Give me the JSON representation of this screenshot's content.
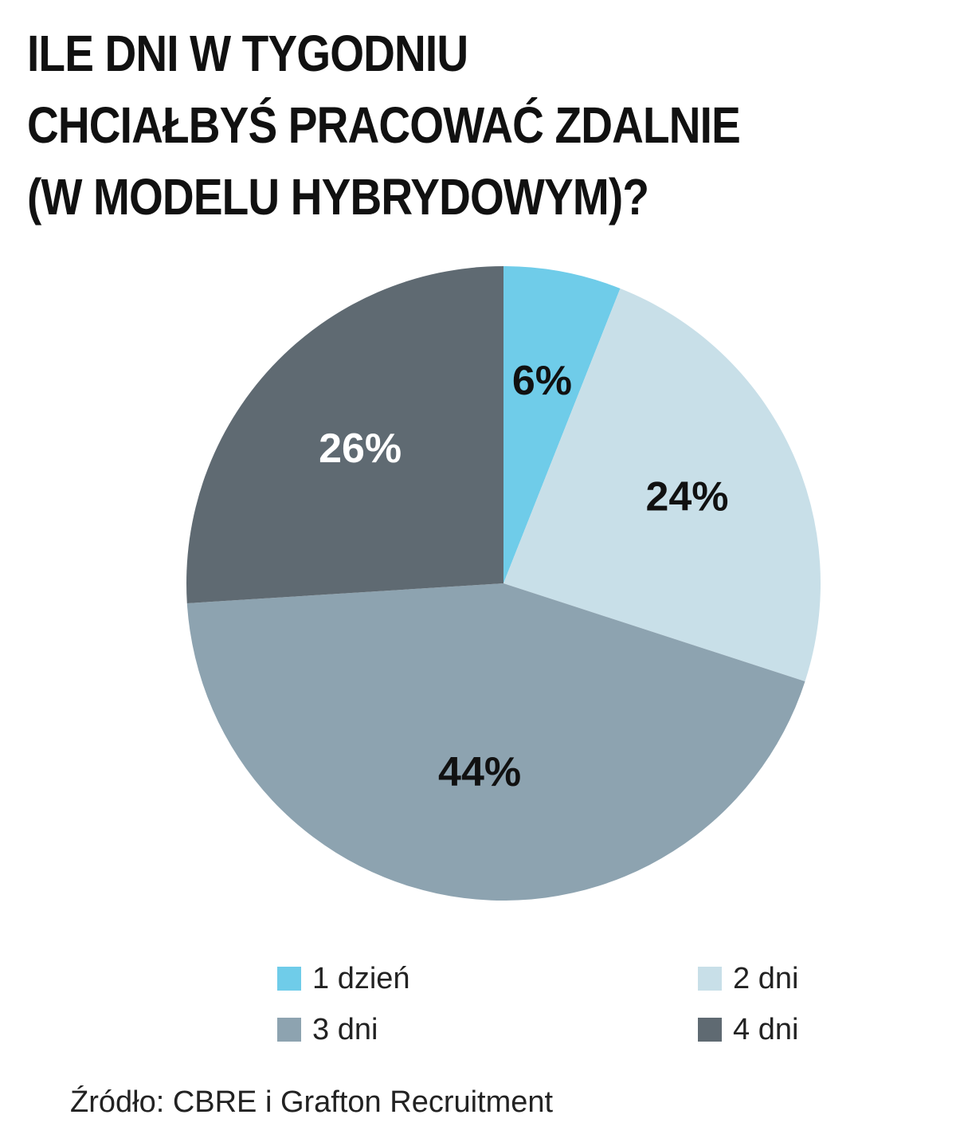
{
  "chart_data": {
    "type": "pie",
    "title_lines": [
      "ILE DNI W TYGODNIU",
      "CHCIAŁBYŚ PRACOWAĆ ZDALNIE",
      "(W MODELU HYBRYDOWYM)?"
    ],
    "categories": [
      "1 dzień",
      "2 dni",
      "3 dni",
      "4 dni"
    ],
    "values": [
      6,
      24,
      44,
      26
    ],
    "data_labels": [
      "6%",
      "24%",
      "44%",
      "26%"
    ],
    "colors": [
      "#6fcce9",
      "#c8dfe8",
      "#8da3b0",
      "#5f6a72"
    ],
    "label_colors": [
      "#111111",
      "#111111",
      "#111111",
      "#ffffff"
    ],
    "legend_position": "bottom",
    "start_angle": "top, clockwise"
  },
  "source": "Źródło: CBRE i Grafton Recruitment"
}
